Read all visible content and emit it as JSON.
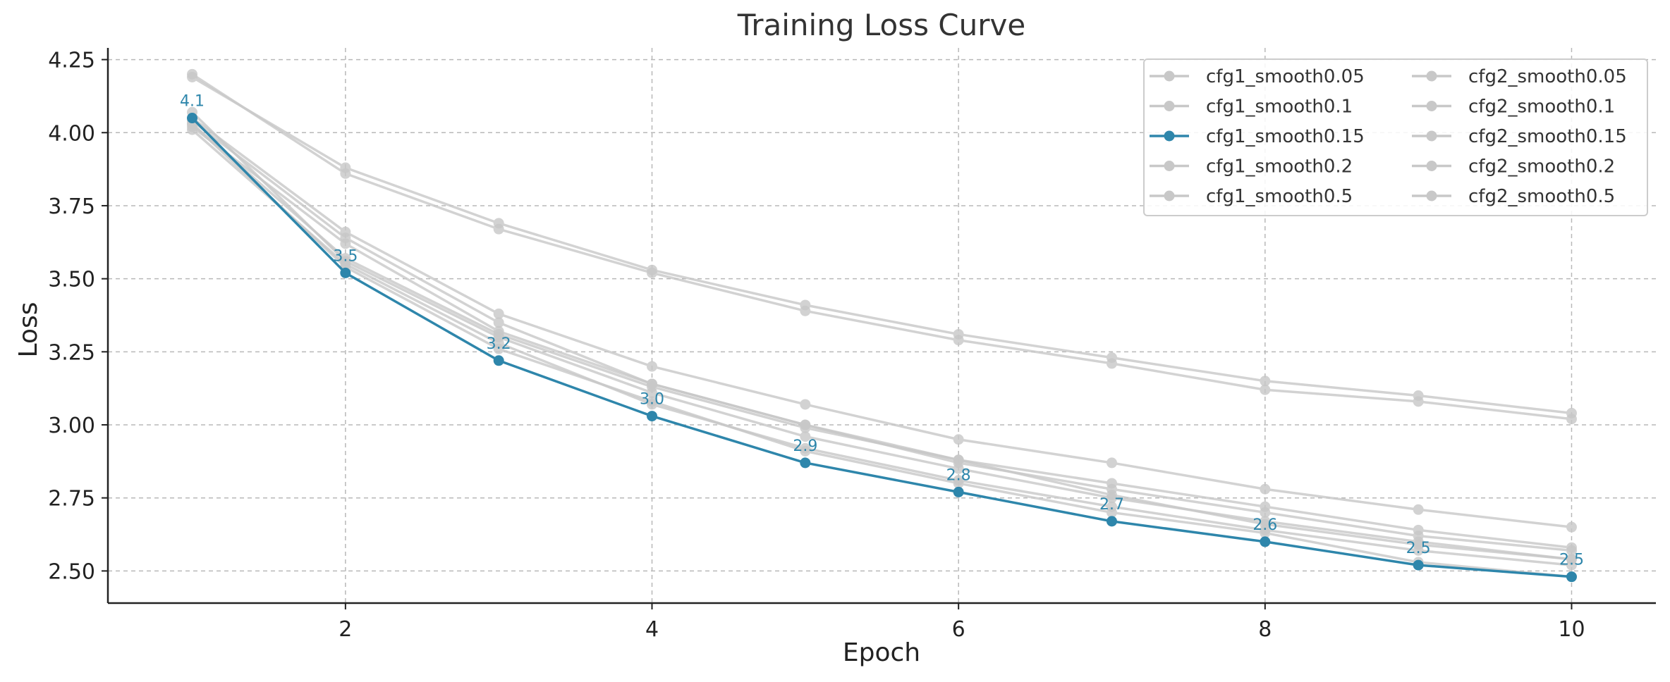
{
  "chart_data": {
    "type": "line",
    "title": "Training Loss Curve",
    "xlabel": "Epoch",
    "ylabel": "Loss",
    "xlim": [
      0.45,
      10.55
    ],
    "ylim": [
      2.39,
      4.29
    ],
    "xticks": [
      2,
      4,
      6,
      8,
      10
    ],
    "yticks": [
      2.5,
      2.75,
      3.0,
      3.25,
      3.5,
      3.75,
      4.0,
      4.25
    ],
    "ytick_labels": [
      "2.50",
      "2.75",
      "3.00",
      "3.25",
      "3.50",
      "3.75",
      "4.00",
      "4.25"
    ],
    "grid": true,
    "legend_position": "top-right",
    "legend_columns": 2,
    "highlight_series": "cfg1_smooth0.15",
    "highlight_color": "#2e86ab",
    "muted_color": "#c8c8c8",
    "x": [
      1,
      2,
      3,
      4,
      5,
      6,
      7,
      8,
      9,
      10
    ],
    "series": [
      {
        "name": "cfg1_smooth0.05",
        "values": [
          4.07,
          3.56,
          3.3,
          3.11,
          2.96,
          2.85,
          2.75,
          2.67,
          2.6,
          2.54
        ]
      },
      {
        "name": "cfg1_smooth0.1",
        "values": [
          4.01,
          3.55,
          3.28,
          3.07,
          2.92,
          2.81,
          2.72,
          2.64,
          2.57,
          2.52
        ]
      },
      {
        "name": "cfg1_smooth0.15",
        "values": [
          4.05,
          3.52,
          3.22,
          3.03,
          2.87,
          2.77,
          2.67,
          2.6,
          2.52,
          2.48
        ]
      },
      {
        "name": "cfg1_smooth0.2",
        "values": [
          4.03,
          3.54,
          3.26,
          3.08,
          2.91,
          2.8,
          2.7,
          2.63,
          2.53,
          2.48
        ]
      },
      {
        "name": "cfg1_smooth0.5",
        "values": [
          4.2,
          3.86,
          3.67,
          3.52,
          3.39,
          3.29,
          3.21,
          3.12,
          3.08,
          3.02
        ]
      },
      {
        "name": "cfg2_smooth0.05",
        "values": [
          4.02,
          3.62,
          3.32,
          3.14,
          3.0,
          2.87,
          2.78,
          2.7,
          2.62,
          2.57
        ]
      },
      {
        "name": "cfg2_smooth0.1",
        "values": [
          4.19,
          3.88,
          3.69,
          3.53,
          3.41,
          3.31,
          3.23,
          3.15,
          3.1,
          3.04
        ]
      },
      {
        "name": "cfg2_smooth0.15",
        "values": [
          4.05,
          3.66,
          3.38,
          3.2,
          3.07,
          2.95,
          2.87,
          2.78,
          2.71,
          2.65
        ]
      },
      {
        "name": "cfg2_smooth0.2",
        "values": [
          4.04,
          3.64,
          3.35,
          3.14,
          3.0,
          2.88,
          2.8,
          2.72,
          2.64,
          2.58
        ]
      },
      {
        "name": "cfg2_smooth0.5",
        "values": [
          4.03,
          3.57,
          3.31,
          3.13,
          2.99,
          2.88,
          2.76,
          2.66,
          2.59,
          2.54
        ]
      }
    ],
    "data_labels": [
      "4.1",
      "3.5",
      "3.2",
      "3.0",
      "2.9",
      "2.8",
      "2.7",
      "2.6",
      "2.5",
      "2.5"
    ]
  }
}
